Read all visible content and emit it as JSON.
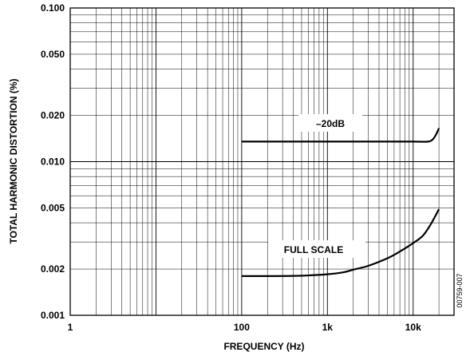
{
  "chart_data": {
    "type": "line",
    "xlabel": "FREQUENCY (Hz)",
    "ylabel": "TOTAL HARMONIC DISTORTION (%)",
    "x_scale": "log",
    "y_scale": "log",
    "xlim": [
      1,
      30000
    ],
    "ylim": [
      0.001,
      0.1
    ],
    "x_tick_labels": [
      {
        "value": 1,
        "label": "1"
      },
      {
        "value": 100,
        "label": "100"
      },
      {
        "value": 1000,
        "label": "1k"
      },
      {
        "value": 10000,
        "label": "10k"
      }
    ],
    "y_tick_labels": [
      {
        "value": 0.1,
        "label": "0.100"
      },
      {
        "value": 0.05,
        "label": "0.050"
      },
      {
        "value": 0.02,
        "label": "0.020"
      },
      {
        "value": 0.01,
        "label": "0.010"
      },
      {
        "value": 0.005,
        "label": "0.005"
      },
      {
        "value": 0.002,
        "label": "0.002"
      },
      {
        "value": 0.001,
        "label": "0.001"
      }
    ],
    "grid": true,
    "series": [
      {
        "name": "–20dB",
        "x": [
          100,
          200,
          500,
          1000,
          2000,
          5000,
          10000,
          15000,
          17000,
          18500,
          20000
        ],
        "y": [
          0.0135,
          0.0135,
          0.0135,
          0.0135,
          0.0135,
          0.0135,
          0.0135,
          0.0135,
          0.014,
          0.015,
          0.0165
        ]
      },
      {
        "name": "FULL SCALE",
        "x": [
          100,
          200,
          500,
          1000,
          1500,
          2000,
          3000,
          5000,
          7000,
          10000,
          13000,
          16000,
          20000
        ],
        "y": [
          0.0018,
          0.0018,
          0.00181,
          0.00185,
          0.0019,
          0.00198,
          0.0021,
          0.00235,
          0.0026,
          0.00295,
          0.0033,
          0.0039,
          0.0049
        ]
      }
    ],
    "figure_id": "00759-007"
  }
}
